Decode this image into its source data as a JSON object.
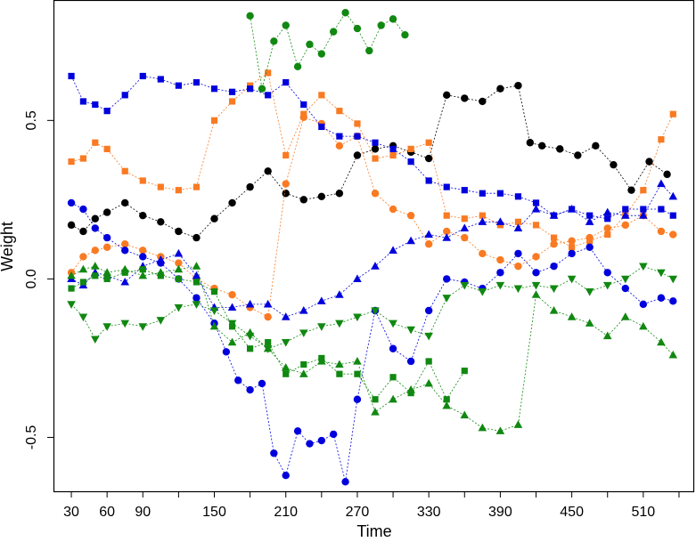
{
  "chart_data": {
    "type": "scatter",
    "xlabel": "Time",
    "ylabel": "Weight",
    "xlim": [
      15,
      552
    ],
    "ylim": [
      -0.67,
      0.88
    ],
    "x_ticks": [
      30,
      60,
      90,
      150,
      210,
      270,
      330,
      390,
      450,
      510
    ],
    "x_minor_ticks": [
      120,
      180,
      240,
      300,
      360,
      420,
      480,
      540
    ],
    "y_ticks": [
      -0.5,
      0.0,
      0.5
    ],
    "y_tick_labels": [
      "-0.5",
      "0.0",
      "0.5"
    ],
    "grid": false,
    "legend": "none",
    "series": [
      {
        "color": "#000000",
        "marker": "circle",
        "x": [
          30,
          40,
          50,
          60,
          75,
          90,
          105,
          120,
          135,
          150,
          165,
          180,
          195,
          210,
          225,
          240,
          255,
          270,
          285,
          300,
          315,
          330,
          345,
          360,
          375,
          390,
          405,
          415,
          425,
          440,
          455,
          470,
          485,
          500,
          515,
          530
        ],
        "y": [
          0.17,
          0.15,
          0.19,
          0.21,
          0.24,
          0.2,
          0.18,
          0.15,
          0.13,
          0.19,
          0.24,
          0.29,
          0.34,
          0.27,
          0.25,
          0.26,
          0.27,
          0.39,
          0.41,
          0.42,
          0.4,
          0.38,
          0.58,
          0.57,
          0.56,
          0.6,
          0.61,
          0.43,
          0.42,
          0.41,
          0.39,
          0.42,
          0.36,
          0.28,
          0.37,
          0.33
        ]
      },
      {
        "color": "#f97a22",
        "marker": "square",
        "x": [
          30,
          40,
          50,
          60,
          75,
          90,
          105,
          120,
          135,
          150,
          165,
          180,
          195,
          210,
          225,
          240,
          255,
          270,
          285,
          300,
          315,
          330,
          345,
          360,
          375,
          390,
          405,
          420,
          435,
          450,
          465,
          480,
          495,
          510,
          525,
          535
        ],
        "y": [
          0.37,
          0.38,
          0.43,
          0.41,
          0.34,
          0.31,
          0.29,
          0.28,
          0.29,
          0.5,
          0.56,
          0.61,
          0.65,
          0.39,
          0.52,
          0.58,
          0.53,
          0.49,
          0.38,
          0.39,
          0.41,
          0.43,
          0.2,
          0.19,
          0.2,
          0.17,
          0.18,
          0.17,
          0.13,
          0.1,
          0.12,
          0.14,
          0.2,
          0.28,
          0.44,
          0.52
        ]
      },
      {
        "color": "#f97a22",
        "marker": "circle",
        "x": [
          30,
          40,
          50,
          60,
          75,
          90,
          105,
          120,
          135,
          150,
          165,
          180,
          195,
          210,
          225,
          240,
          255,
          270,
          285,
          300,
          315,
          330,
          345,
          360,
          375,
          390,
          405,
          420,
          435,
          450,
          465,
          480,
          495,
          510,
          525,
          535
        ],
        "y": [
          0.02,
          0.07,
          0.09,
          0.1,
          0.11,
          0.09,
          0.07,
          0.05,
          0.0,
          -0.03,
          -0.05,
          -0.09,
          -0.12,
          0.3,
          0.51,
          0.49,
          0.42,
          0.45,
          0.27,
          0.22,
          0.2,
          0.11,
          0.15,
          0.13,
          0.08,
          0.06,
          0.04,
          0.07,
          0.11,
          0.12,
          0.13,
          0.16,
          0.17,
          0.2,
          0.15,
          0.14
        ]
      },
      {
        "color": "#0000dd",
        "marker": "square",
        "x": [
          30,
          40,
          50,
          60,
          75,
          90,
          105,
          120,
          135,
          150,
          165,
          180,
          195,
          210,
          225,
          240,
          255,
          270,
          285,
          300,
          315,
          330,
          345,
          360,
          375,
          390,
          405,
          420,
          435,
          450,
          465,
          480,
          495,
          510,
          525,
          535
        ],
        "y": [
          0.64,
          0.56,
          0.55,
          0.53,
          0.58,
          0.64,
          0.63,
          0.61,
          0.62,
          0.6,
          0.59,
          0.6,
          0.58,
          0.62,
          0.55,
          0.48,
          0.45,
          0.45,
          0.43,
          0.41,
          0.37,
          0.31,
          0.29,
          0.28,
          0.27,
          0.27,
          0.26,
          0.24,
          0.2,
          0.22,
          0.2,
          0.19,
          0.22,
          0.22,
          0.22,
          0.2
        ]
      },
      {
        "color": "#0000dd",
        "marker": "circle",
        "x": [
          30,
          40,
          50,
          60,
          75,
          90,
          105,
          120,
          135,
          150,
          160,
          170,
          180,
          190,
          200,
          210,
          220,
          230,
          240,
          250,
          260,
          270,
          285,
          300,
          315,
          330,
          345,
          360,
          375,
          390,
          405,
          420,
          435,
          450,
          465,
          480,
          495,
          510,
          525,
          535
        ],
        "y": [
          0.24,
          0.22,
          0.16,
          0.13,
          0.09,
          0.07,
          0.05,
          0.0,
          -0.06,
          -0.14,
          -0.23,
          -0.32,
          -0.35,
          -0.33,
          -0.55,
          -0.62,
          -0.48,
          -0.52,
          -0.51,
          -0.49,
          -0.64,
          -0.38,
          -0.1,
          -0.22,
          -0.26,
          -0.1,
          0.0,
          -0.01,
          -0.03,
          0.02,
          0.08,
          0.02,
          0.04,
          0.08,
          0.1,
          0.02,
          -0.03,
          -0.08,
          -0.06,
          -0.07
        ]
      },
      {
        "color": "#0000dd",
        "marker": "triangle-up",
        "x": [
          30,
          40,
          50,
          60,
          75,
          90,
          105,
          120,
          135,
          150,
          165,
          180,
          195,
          210,
          225,
          240,
          255,
          270,
          285,
          300,
          315,
          330,
          345,
          360,
          375,
          390,
          405,
          420,
          435,
          450,
          465,
          480,
          495,
          510,
          525,
          535
        ],
        "y": [
          0.0,
          -0.02,
          0.02,
          0.01,
          -0.01,
          0.04,
          0.06,
          0.08,
          0.01,
          -0.09,
          -0.09,
          -0.08,
          -0.08,
          -0.12,
          -0.1,
          -0.07,
          -0.05,
          0.0,
          0.04,
          0.09,
          0.12,
          0.14,
          0.13,
          0.16,
          0.18,
          0.18,
          0.16,
          0.22,
          0.2,
          0.22,
          0.18,
          0.21,
          0.2,
          0.2,
          0.3,
          0.26
        ]
      },
      {
        "color": "#118811",
        "marker": "circle",
        "x": [
          180,
          190,
          200,
          210,
          220,
          230,
          240,
          250,
          260,
          270,
          280,
          290,
          300,
          310
        ],
        "y": [
          0.83,
          0.6,
          0.75,
          0.8,
          0.67,
          0.74,
          0.71,
          0.78,
          0.84,
          0.79,
          0.72,
          0.8,
          0.82,
          0.77
        ]
      },
      {
        "color": "#118811",
        "marker": "square",
        "x": [
          30,
          40,
          50,
          60,
          75,
          90,
          105,
          120,
          135,
          150,
          165,
          180,
          195,
          210,
          225,
          240,
          255,
          270,
          285,
          300,
          315,
          330,
          345,
          360
        ],
        "y": [
          -0.03,
          -0.01,
          0.01,
          0.0,
          0.02,
          0.03,
          0.01,
          0.0,
          -0.01,
          -0.04,
          -0.15,
          -0.22,
          -0.2,
          -0.3,
          -0.27,
          -0.25,
          -0.3,
          -0.3,
          -0.38,
          -0.31,
          -0.36,
          -0.26,
          -0.38,
          -0.29
        ]
      },
      {
        "color": "#118811",
        "marker": "triangle-up",
        "x": [
          30,
          40,
          50,
          60,
          75,
          90,
          105,
          120,
          135,
          150,
          165,
          180,
          195,
          210,
          225,
          240,
          255,
          270,
          285,
          300,
          315,
          330,
          345,
          360,
          375,
          390,
          405,
          420,
          435,
          450,
          465,
          480,
          495,
          510,
          525,
          535
        ],
        "y": [
          0.01,
          0.03,
          0.04,
          0.02,
          0.03,
          0.01,
          0.02,
          0.03,
          0.04,
          -0.15,
          -0.2,
          -0.17,
          -0.22,
          -0.28,
          -0.3,
          -0.26,
          -0.27,
          -0.26,
          -0.42,
          -0.38,
          -0.35,
          -0.33,
          -0.4,
          -0.43,
          -0.47,
          -0.48,
          -0.46,
          -0.05,
          -0.1,
          -0.12,
          -0.14,
          -0.18,
          -0.12,
          -0.15,
          -0.2,
          -0.24
        ]
      },
      {
        "color": "#118811",
        "marker": "triangle-down",
        "x": [
          30,
          40,
          50,
          60,
          75,
          90,
          105,
          120,
          135,
          150,
          165,
          180,
          195,
          210,
          225,
          240,
          255,
          270,
          285,
          300,
          315,
          330,
          345,
          360,
          375,
          390,
          405,
          420,
          435,
          450,
          465,
          480,
          495,
          510,
          525,
          535
        ],
        "y": [
          -0.08,
          -0.12,
          -0.19,
          -0.15,
          -0.14,
          -0.15,
          -0.13,
          -0.09,
          -0.08,
          -0.1,
          -0.14,
          -0.18,
          -0.22,
          -0.2,
          -0.17,
          -0.15,
          -0.14,
          -0.12,
          -0.1,
          -0.14,
          -0.16,
          -0.18,
          -0.06,
          -0.02,
          -0.04,
          -0.02,
          -0.03,
          -0.02,
          -0.03,
          0.0,
          -0.04,
          -0.02,
          0.0,
          0.04,
          0.02,
          0.0
        ]
      }
    ]
  }
}
